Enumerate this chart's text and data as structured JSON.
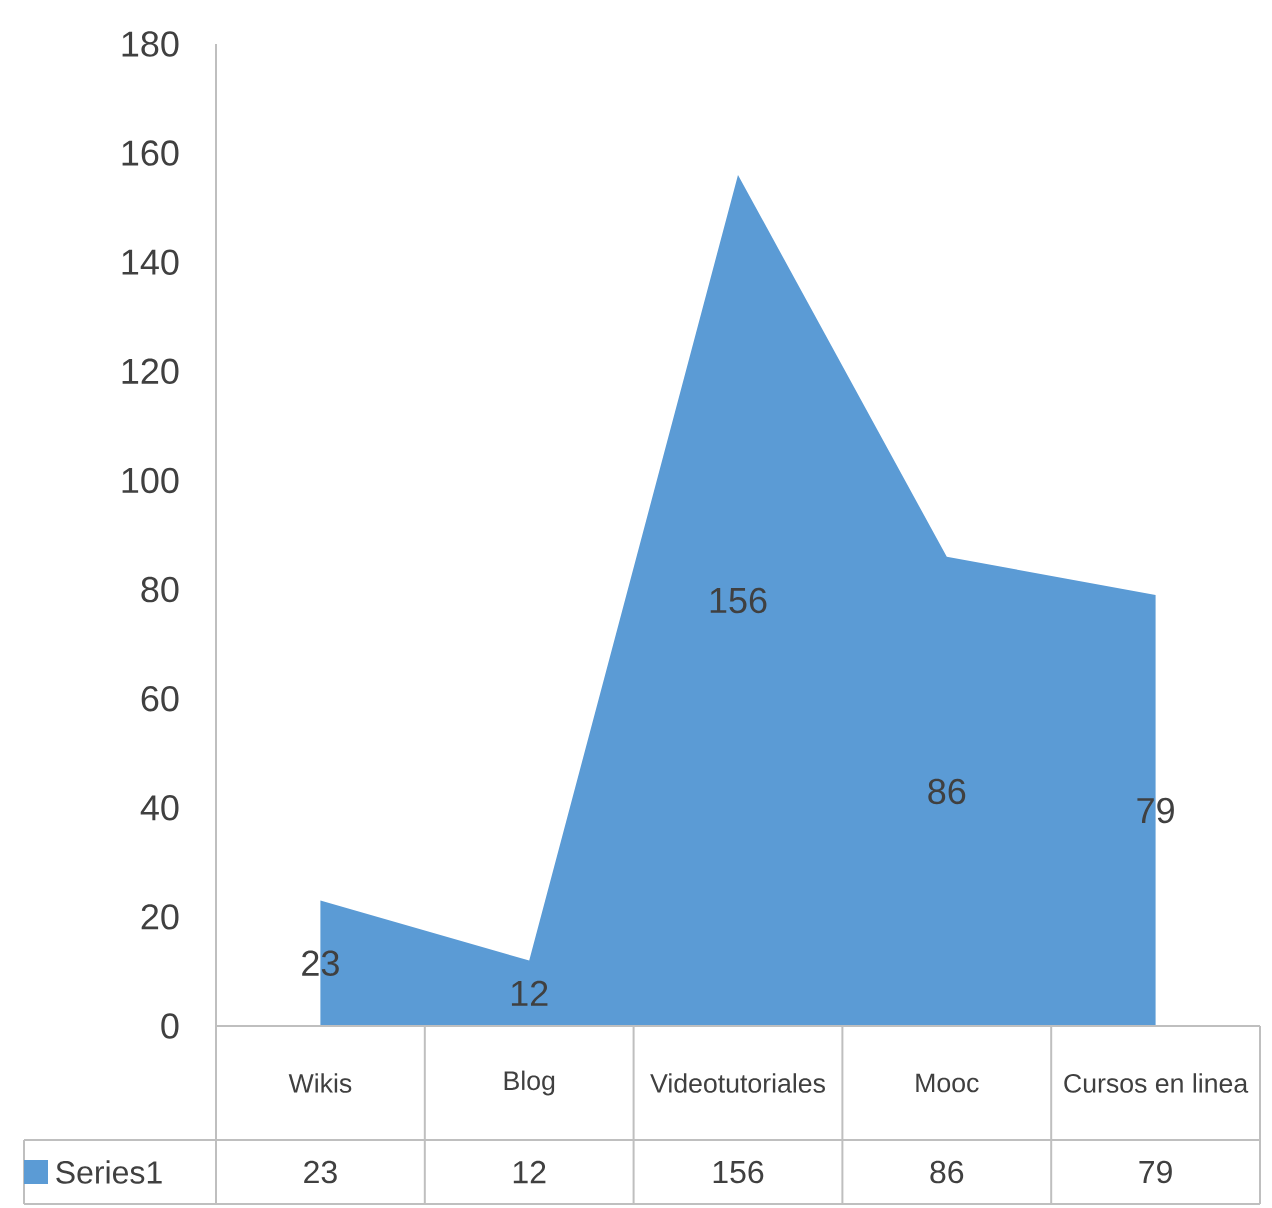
{
  "chart_data": {
    "type": "area",
    "categories": [
      "Wikis",
      "Blog",
      "Videotutoriales",
      "Mooc",
      "Cursos en linea"
    ],
    "series": [
      {
        "name": "Series1",
        "color": "#5b9bd5",
        "values": [
          23,
          12,
          156,
          86,
          79
        ]
      }
    ],
    "annotations": [
      "23",
      "12",
      "156",
      "86",
      "79"
    ],
    "ylim": [
      0,
      180
    ],
    "yticks": [
      0,
      20,
      40,
      60,
      80,
      100,
      120,
      140,
      160,
      180
    ],
    "data_labels": true
  }
}
